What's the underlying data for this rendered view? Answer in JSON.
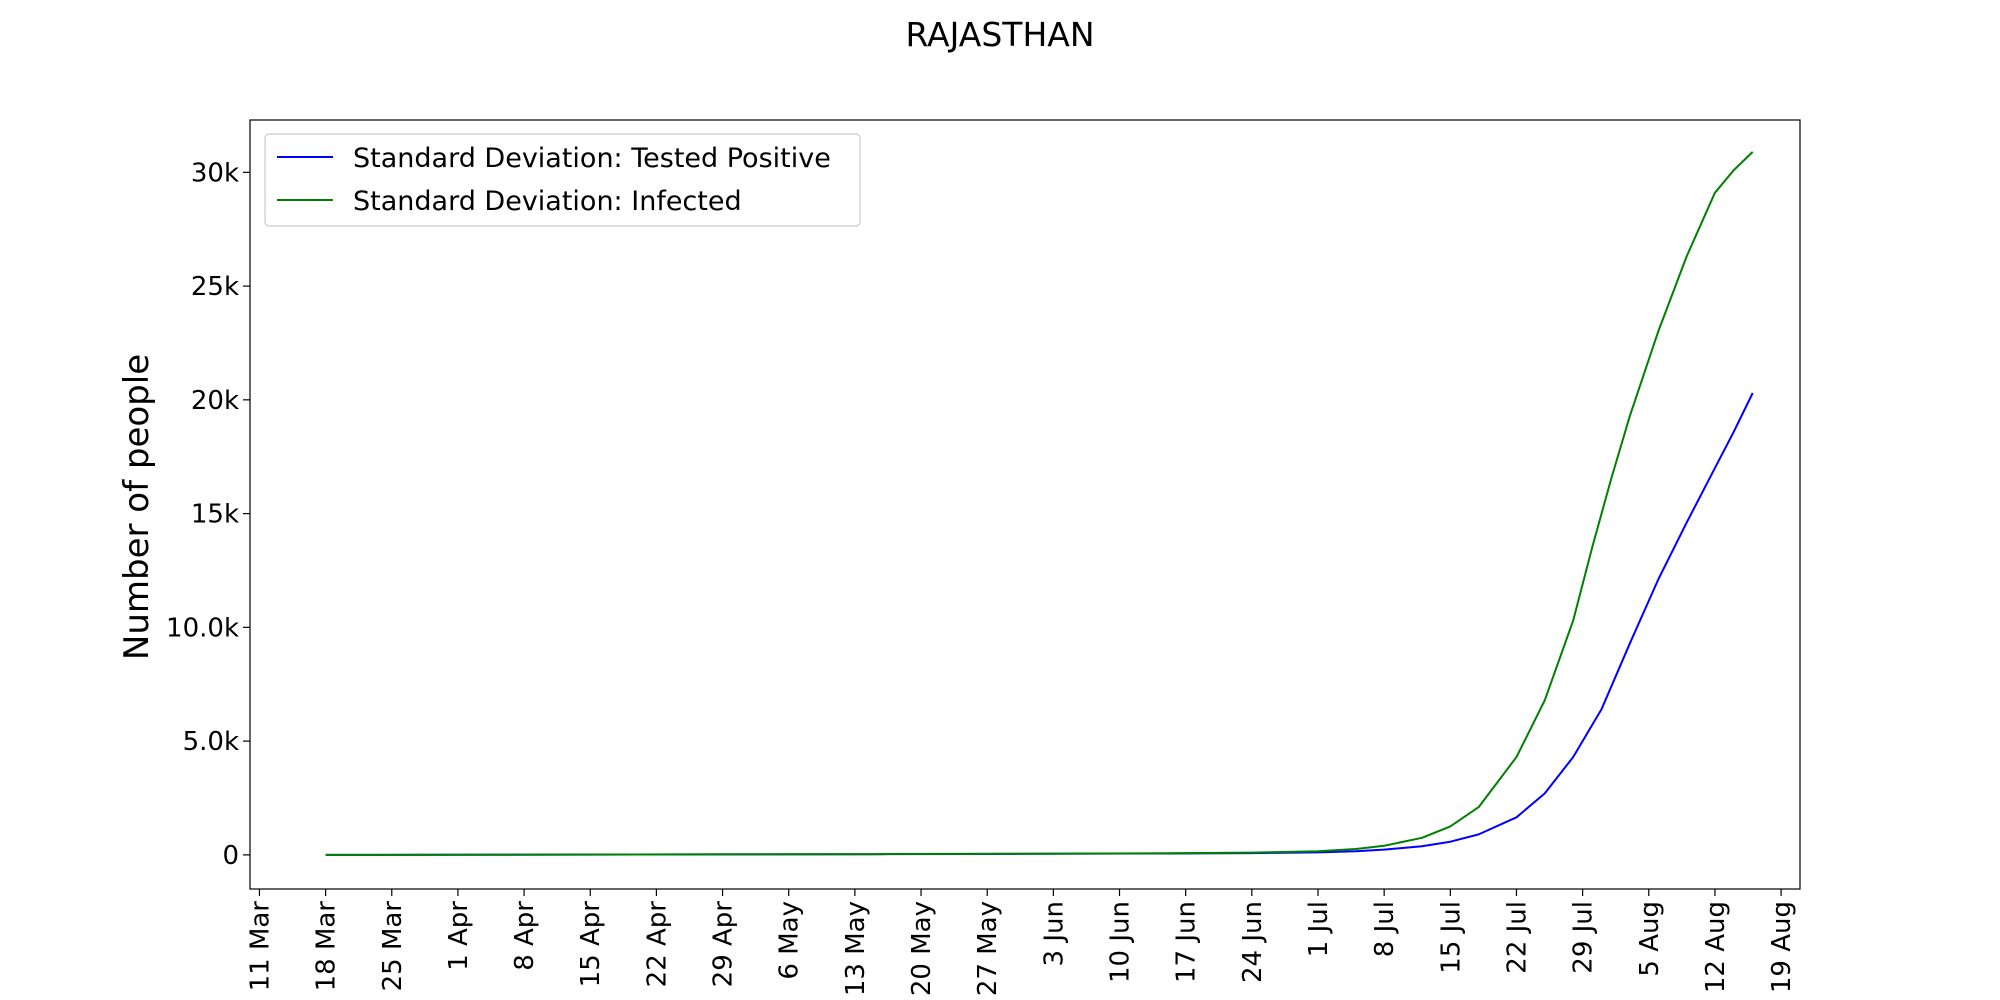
{
  "chart_data": {
    "type": "line",
    "title": "RAJASTHAN",
    "xlabel": "",
    "ylabel": "Number of people",
    "x_ticks": [
      "11 Mar",
      "18 Mar",
      "25 Mar",
      "1 Apr",
      "8 Apr",
      "15 Apr",
      "22 Apr",
      "29 Apr",
      "6 May",
      "13 May",
      "20 May",
      "27 May",
      "3 Jun",
      "10 Jun",
      "17 Jun",
      "24 Jun",
      "1 Jul",
      "8 Jul",
      "15 Jul",
      "22 Jul",
      "29 Jul",
      "5 Aug",
      "12 Aug",
      "19 Aug"
    ],
    "y_ticks": [
      {
        "value": 0,
        "label": "0"
      },
      {
        "value": 5000,
        "label": "5.0k"
      },
      {
        "value": 10000,
        "label": "10.0k"
      },
      {
        "value": 15000,
        "label": "15k"
      },
      {
        "value": 20000,
        "label": "20k"
      },
      {
        "value": 25000,
        "label": "25k"
      },
      {
        "value": 30000,
        "label": "30k"
      }
    ],
    "xlim": [
      "2020-03-10",
      "2020-08-21"
    ],
    "ylim": [
      -1500,
      32300
    ],
    "legend_position": "upper-left",
    "grid": false,
    "series": [
      {
        "name": "Standard Deviation: Tested Positive",
        "color": "#0000ff",
        "points": [
          [
            "2020-03-18",
            0
          ],
          [
            "2020-04-01",
            5
          ],
          [
            "2020-04-15",
            10
          ],
          [
            "2020-05-01",
            20
          ],
          [
            "2020-05-15",
            30
          ],
          [
            "2020-06-01",
            45
          ],
          [
            "2020-06-15",
            60
          ],
          [
            "2020-06-24",
            80
          ],
          [
            "2020-07-01",
            110
          ],
          [
            "2020-07-05",
            160
          ],
          [
            "2020-07-08",
            230
          ],
          [
            "2020-07-12",
            380
          ],
          [
            "2020-07-15",
            580
          ],
          [
            "2020-07-18",
            900
          ],
          [
            "2020-07-22",
            1650
          ],
          [
            "2020-07-25",
            2700
          ],
          [
            "2020-07-28",
            4300
          ],
          [
            "2020-07-31",
            6400
          ],
          [
            "2020-08-03",
            9300
          ],
          [
            "2020-08-06",
            12100
          ],
          [
            "2020-08-09",
            14600
          ],
          [
            "2020-08-12",
            17000
          ],
          [
            "2020-08-14",
            18600
          ],
          [
            "2020-08-16",
            20300
          ]
        ]
      },
      {
        "name": "Standard Deviation: Infected",
        "color": "#008000",
        "points": [
          [
            "2020-03-18",
            0
          ],
          [
            "2020-04-01",
            8
          ],
          [
            "2020-04-15",
            15
          ],
          [
            "2020-05-01",
            25
          ],
          [
            "2020-05-15",
            35
          ],
          [
            "2020-06-01",
            50
          ],
          [
            "2020-06-15",
            70
          ],
          [
            "2020-06-24",
            100
          ],
          [
            "2020-07-01",
            160
          ],
          [
            "2020-07-05",
            260
          ],
          [
            "2020-07-08",
            400
          ],
          [
            "2020-07-12",
            750
          ],
          [
            "2020-07-15",
            1250
          ],
          [
            "2020-07-18",
            2100
          ],
          [
            "2020-07-22",
            4300
          ],
          [
            "2020-07-25",
            6800
          ],
          [
            "2020-07-28",
            10300
          ],
          [
            "2020-07-30",
            13500
          ],
          [
            "2020-08-01",
            16500
          ],
          [
            "2020-08-03",
            19300
          ],
          [
            "2020-08-06",
            23000
          ],
          [
            "2020-08-09",
            26300
          ],
          [
            "2020-08-12",
            29100
          ],
          [
            "2020-08-14",
            30100
          ],
          [
            "2020-08-16",
            30900
          ]
        ]
      }
    ]
  }
}
